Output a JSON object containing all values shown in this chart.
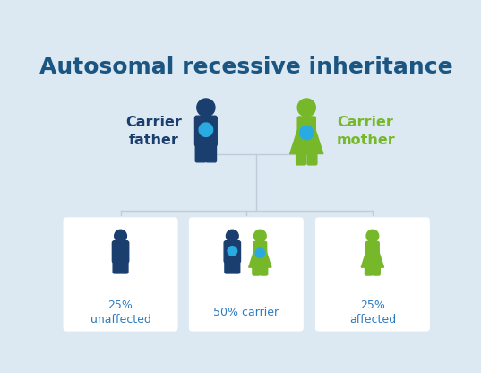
{
  "title": "Autosomal recessive inheritance",
  "title_color": "#1b5582",
  "title_fontsize": 18,
  "bg_color": "#dde9f2",
  "card_color": "#ffffff",
  "dark_blue": "#1a3f6f",
  "light_blue": "#29abe2",
  "green": "#77b82a",
  "label_carrier_father": "Carrier\nfather",
  "label_carrier_mother": "Carrier\nmother",
  "label_unaffected": "25%\nunaffected",
  "label_carrier": "50% carrier",
  "label_affected": "25%\naffected",
  "text_color_blue": "#2d7bbf",
  "text_color_green": "#77b82a",
  "line_color": "#c0cdd8",
  "card_edge_color": "#dde9f2"
}
